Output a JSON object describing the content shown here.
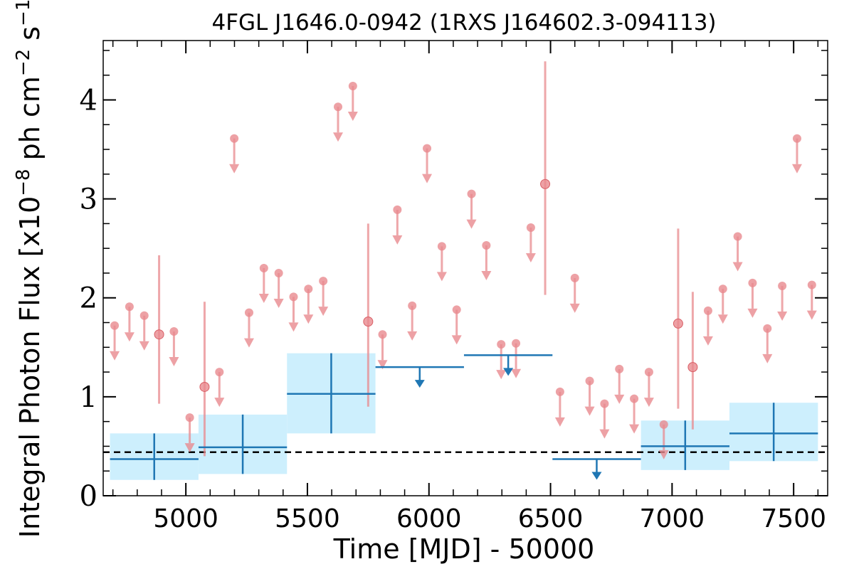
{
  "chart_data": {
    "type": "scatter",
    "title": "4FGL J1646.0-0942 (1RXS J164602.3-094113)",
    "xlabel": "Time [MJD] - 50000",
    "ylabel_main": "Integral Photon Flux [x10",
    "ylabel_exp1": "−8",
    "ylabel_mid": " ph cm",
    "ylabel_exp2": "−2",
    "ylabel_s": " s",
    "ylabel_exp3": "−1",
    "ylabel_end": "]",
    "xlim": [
      4660,
      7640
    ],
    "ylim": [
      0,
      4.6
    ],
    "xticks": [
      5000,
      5500,
      6000,
      6500,
      7000,
      7500
    ],
    "xtick_labels": [
      "5000",
      "5500",
      "6000",
      "6500",
      "7000",
      "7500"
    ],
    "yticks": [
      0,
      1,
      2,
      3,
      4
    ],
    "ytick_labels": [
      "0",
      "1",
      "2",
      "3",
      "4"
    ],
    "reference_line": 0.44,
    "colors": {
      "short_bins": "#e8898e",
      "long_bins": "#1f77b4",
      "long_bin_band": "#cdeffd",
      "reference": "#000000"
    },
    "short_bins": {
      "detections": [
        {
          "x": 4890,
          "y": 1.63,
          "ylo": 0.93,
          "yhi": 2.43
        },
        {
          "x": 5077,
          "y": 1.1,
          "ylo": 0.4,
          "yhi": 1.96
        },
        {
          "x": 5750,
          "y": 1.76,
          "ylo": 0.9,
          "yhi": 2.75
        },
        {
          "x": 6478,
          "y": 3.15,
          "ylo": 2.03,
          "yhi": 4.39
        },
        {
          "x": 7025,
          "y": 1.74,
          "ylo": 0.88,
          "yhi": 2.7
        },
        {
          "x": 7085,
          "y": 1.3,
          "ylo": 0.67,
          "yhi": 2.06
        }
      ],
      "upper_limits": [
        {
          "x": 4707,
          "y": 1.72
        },
        {
          "x": 4768,
          "y": 1.91
        },
        {
          "x": 4829,
          "y": 1.82
        },
        {
          "x": 4951,
          "y": 1.66
        },
        {
          "x": 5016,
          "y": 0.79
        },
        {
          "x": 5138,
          "y": 1.25
        },
        {
          "x": 5199,
          "y": 3.61
        },
        {
          "x": 5260,
          "y": 1.85
        },
        {
          "x": 5321,
          "y": 2.3
        },
        {
          "x": 5382,
          "y": 2.25
        },
        {
          "x": 5443,
          "y": 2.01
        },
        {
          "x": 5504,
          "y": 2.09
        },
        {
          "x": 5565,
          "y": 2.17
        },
        {
          "x": 5626,
          "y": 3.93
        },
        {
          "x": 5687,
          "y": 4.14
        },
        {
          "x": 5809,
          "y": 1.63
        },
        {
          "x": 5870,
          "y": 2.89
        },
        {
          "x": 5931,
          "y": 1.92
        },
        {
          "x": 5992,
          "y": 3.51
        },
        {
          "x": 6053,
          "y": 2.52
        },
        {
          "x": 6114,
          "y": 1.88
        },
        {
          "x": 6175,
          "y": 3.05
        },
        {
          "x": 6236,
          "y": 2.53
        },
        {
          "x": 6297,
          "y": 1.53
        },
        {
          "x": 6358,
          "y": 1.54
        },
        {
          "x": 6419,
          "y": 2.71
        },
        {
          "x": 6539,
          "y": 1.05
        },
        {
          "x": 6600,
          "y": 2.2
        },
        {
          "x": 6661,
          "y": 1.16
        },
        {
          "x": 6722,
          "y": 0.93
        },
        {
          "x": 6783,
          "y": 1.28
        },
        {
          "x": 6844,
          "y": 0.98
        },
        {
          "x": 6905,
          "y": 1.25
        },
        {
          "x": 6966,
          "y": 0.72
        },
        {
          "x": 7148,
          "y": 1.87
        },
        {
          "x": 7209,
          "y": 2.09
        },
        {
          "x": 7270,
          "y": 2.62
        },
        {
          "x": 7331,
          "y": 2.15
        },
        {
          "x": 7392,
          "y": 1.69
        },
        {
          "x": 7453,
          "y": 2.12
        },
        {
          "x": 7514,
          "y": 3.61
        },
        {
          "x": 7575,
          "y": 2.13
        }
      ]
    },
    "long_bins": {
      "detections": [
        {
          "x0": 4688,
          "x1": 5052,
          "x": 4870,
          "y": 0.37,
          "ylo": 0.16,
          "yhi": 0.63
        },
        {
          "x0": 5052,
          "x1": 5416,
          "x": 5234,
          "y": 0.49,
          "ylo": 0.22,
          "yhi": 0.82
        },
        {
          "x0": 5416,
          "x1": 5780,
          "x": 5598,
          "y": 1.03,
          "ylo": 0.63,
          "yhi": 1.44
        },
        {
          "x0": 6872,
          "x1": 7236,
          "x": 7054,
          "y": 0.5,
          "ylo": 0.26,
          "yhi": 0.76
        },
        {
          "x0": 7236,
          "x1": 7600,
          "x": 7418,
          "y": 0.63,
          "ylo": 0.35,
          "yhi": 0.94
        }
      ],
      "upper_limits": [
        {
          "x0": 5780,
          "x1": 6144,
          "x": 5962,
          "y": 1.3
        },
        {
          "x0": 6144,
          "x1": 6508,
          "x": 6326,
          "y": 1.42
        },
        {
          "x0": 6508,
          "x1": 6872,
          "x": 6690,
          "y": 0.37
        }
      ]
    }
  }
}
